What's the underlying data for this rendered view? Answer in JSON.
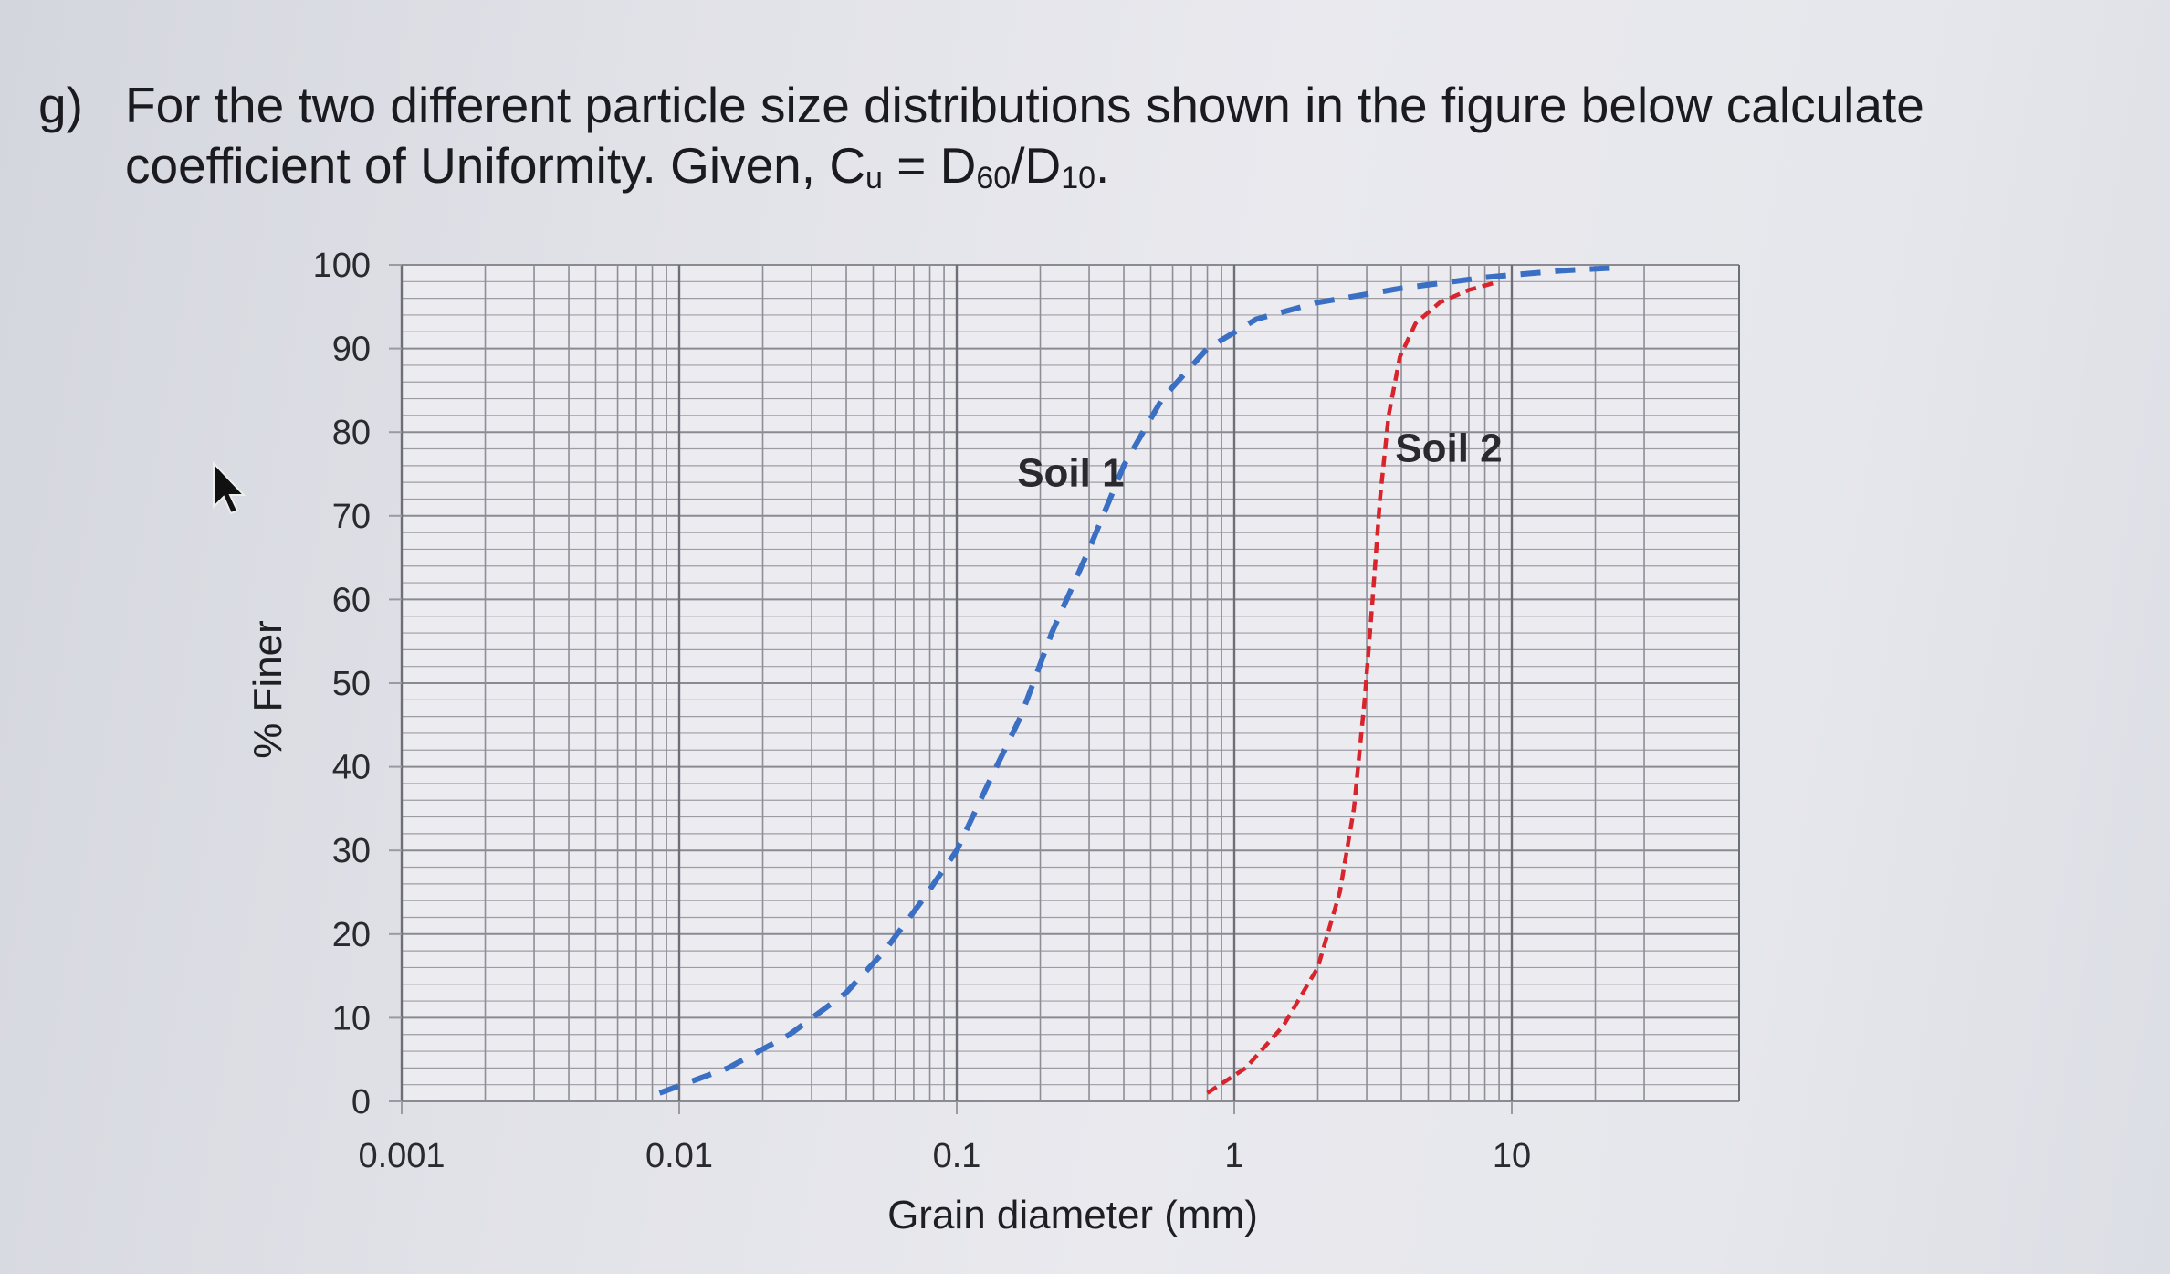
{
  "question": {
    "label": "g)",
    "text_line1": "For the two different particle size distributions shown in the figure below calculate",
    "text_line2_prefix": "coefficient of Uniformity. Given, C",
    "cu_subscript": "u",
    "eq_mid": " = D",
    "d60_subscript": "60",
    "slash_d": "/D",
    "d10_subscript": "10",
    "end": "."
  },
  "chart_data": {
    "type": "line",
    "x_scale": "log",
    "xlabel": "Grain diameter (mm)",
    "ylabel": "% Finer",
    "xlim": [
      0.001,
      30
    ],
    "ylim": [
      0,
      100
    ],
    "x_ticks": [
      0.001,
      0.01,
      0.1,
      1,
      10
    ],
    "x_tick_labels": [
      "0.001",
      "0.01",
      "0.1",
      "1",
      "10"
    ],
    "y_ticks": [
      0,
      10,
      20,
      30,
      40,
      50,
      60,
      70,
      80,
      90,
      100
    ],
    "y_tick_labels": [
      "0",
      "10",
      "20",
      "30",
      "40",
      "50",
      "60",
      "70",
      "80",
      "90",
      "100"
    ],
    "grid": true,
    "series": [
      {
        "name": "Soil 1",
        "color": "#3a6fc4",
        "dash": "dashed",
        "points": [
          [
            0.0085,
            1
          ],
          [
            0.015,
            4
          ],
          [
            0.025,
            8
          ],
          [
            0.04,
            13
          ],
          [
            0.055,
            18
          ],
          [
            0.075,
            24
          ],
          [
            0.1,
            30
          ],
          [
            0.13,
            38
          ],
          [
            0.17,
            46
          ],
          [
            0.22,
            56
          ],
          [
            0.3,
            66
          ],
          [
            0.4,
            76
          ],
          [
            0.55,
            84
          ],
          [
            0.8,
            90
          ],
          [
            1.2,
            93.5
          ],
          [
            2,
            95.5
          ],
          [
            4,
            97.2
          ],
          [
            8,
            98.5
          ],
          [
            15,
            99.3
          ],
          [
            25,
            99.7
          ]
        ]
      },
      {
        "name": "Soil 2",
        "color": "#d8242c",
        "dash": "dashed",
        "points": [
          [
            0.8,
            1
          ],
          [
            1.1,
            4
          ],
          [
            1.5,
            9
          ],
          [
            2,
            16
          ],
          [
            2.4,
            25
          ],
          [
            2.7,
            35
          ],
          [
            2.95,
            48
          ],
          [
            3.15,
            60
          ],
          [
            3.35,
            72
          ],
          [
            3.6,
            82
          ],
          [
            3.95,
            89
          ],
          [
            4.5,
            93
          ],
          [
            5.5,
            95.5
          ],
          [
            7,
            97
          ],
          [
            9,
            98
          ]
        ]
      }
    ]
  }
}
